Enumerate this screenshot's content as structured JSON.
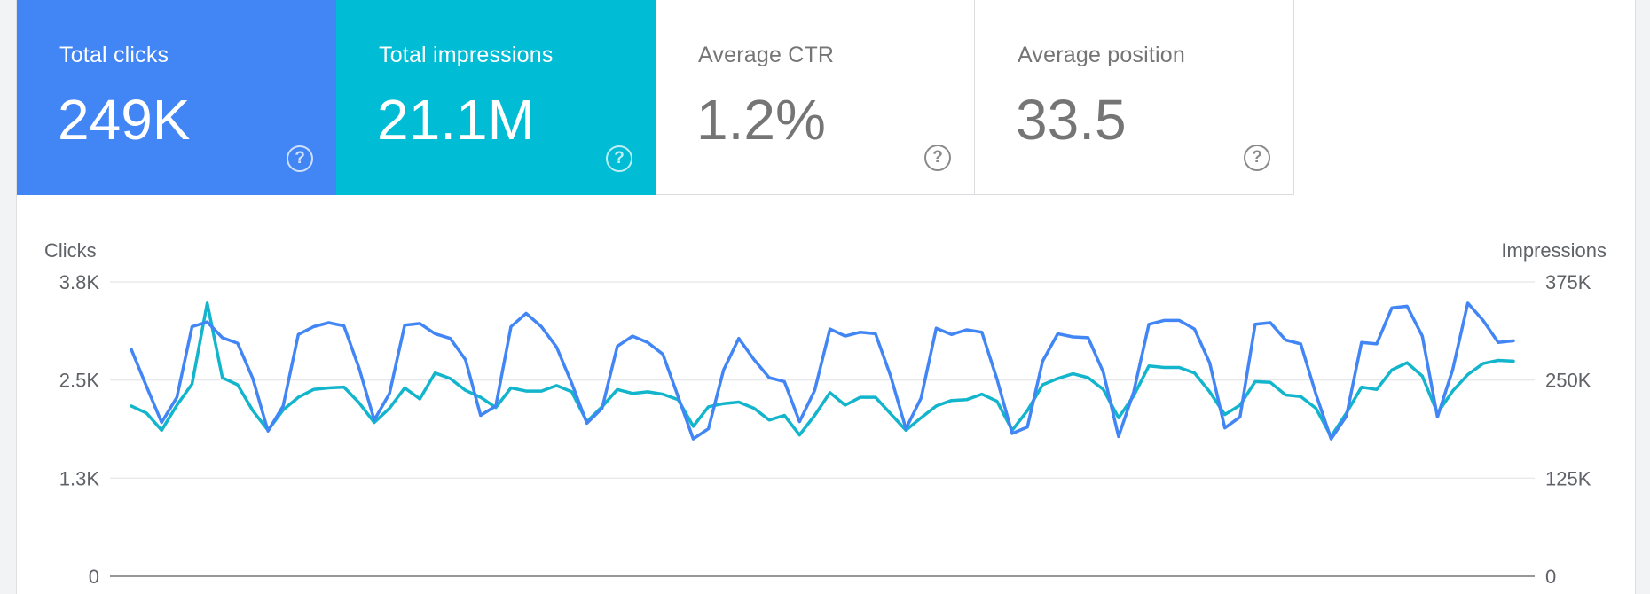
{
  "cards": [
    {
      "label": "Total clicks",
      "value": "249K",
      "help_icon": "help-circle-icon",
      "color": "#4285f4"
    },
    {
      "label": "Total impressions",
      "value": "21.1M",
      "help_icon": "help-circle-icon",
      "color": "#00bcd4"
    },
    {
      "label": "Average CTR",
      "value": "1.2%",
      "help_icon": "help-circle-icon",
      "color": "#ffffff"
    },
    {
      "label": "Average position",
      "value": "33.5",
      "help_icon": "help-circle-icon",
      "color": "#ffffff"
    }
  ],
  "chart_data": {
    "type": "line",
    "ylabel_left": "Clicks",
    "ylabel_right": "Impressions",
    "left_ticks": [
      "0",
      "1.3K",
      "2.5K",
      "3.8K"
    ],
    "right_ticks": [
      "0",
      "125K",
      "250K",
      "375K"
    ],
    "ylim_left": [
      0,
      3750
    ],
    "ylim_right": [
      0,
      375000
    ],
    "grid": true,
    "series": [
      {
        "name": "Clicks",
        "axis": "left",
        "color": "#4285f4",
        "values": [
          2890,
          2420,
          1960,
          2280,
          3180,
          3240,
          3040,
          2970,
          2520,
          1850,
          2170,
          3080,
          3180,
          3230,
          3190,
          2650,
          1990,
          2330,
          3200,
          3220,
          3090,
          3030,
          2760,
          2050,
          2170,
          3180,
          3350,
          3180,
          2920,
          2460,
          1950,
          2140,
          2930,
          3060,
          2980,
          2830,
          2290,
          1750,
          1880,
          2630,
          3030,
          2760,
          2530,
          2480,
          1970,
          2370,
          3150,
          3060,
          3110,
          3090,
          2550,
          1880,
          2270,
          3160,
          3080,
          3140,
          3110,
          2510,
          1820,
          1900,
          2740,
          3090,
          3050,
          3040,
          2600,
          1780,
          2350,
          3210,
          3260,
          3260,
          3150,
          2720,
          1890,
          2030,
          3210,
          3230,
          3010,
          2960,
          2320,
          1750,
          2040,
          2980,
          2960,
          3420,
          3440,
          3060,
          2030,
          2630,
          3480,
          3260,
          2980,
          3000
        ]
      },
      {
        "name": "Impressions",
        "axis": "right",
        "color": "#12b5cb",
        "values": [
          217000,
          208000,
          186000,
          218000,
          245000,
          348000,
          253000,
          244000,
          211000,
          186000,
          212000,
          228000,
          238000,
          240000,
          241000,
          221000,
          196000,
          214000,
          240000,
          226000,
          259000,
          252000,
          237000,
          228000,
          215000,
          240000,
          236000,
          236000,
          243000,
          235000,
          197000,
          216000,
          238000,
          233000,
          235000,
          232000,
          225000,
          191000,
          216000,
          220000,
          222000,
          214000,
          199000,
          205000,
          180000,
          205000,
          234000,
          218000,
          228000,
          228000,
          207000,
          186000,
          202000,
          217000,
          224000,
          225000,
          232000,
          223000,
          186000,
          211000,
          244000,
          252000,
          258000,
          253000,
          238000,
          202000,
          230000,
          268000,
          266000,
          266000,
          259000,
          235000,
          206000,
          218000,
          248000,
          247000,
          231000,
          229000,
          214000,
          178000,
          208000,
          241000,
          238000,
          263000,
          272000,
          255000,
          208000,
          236000,
          257000,
          271000,
          275000,
          274000
        ]
      }
    ]
  }
}
